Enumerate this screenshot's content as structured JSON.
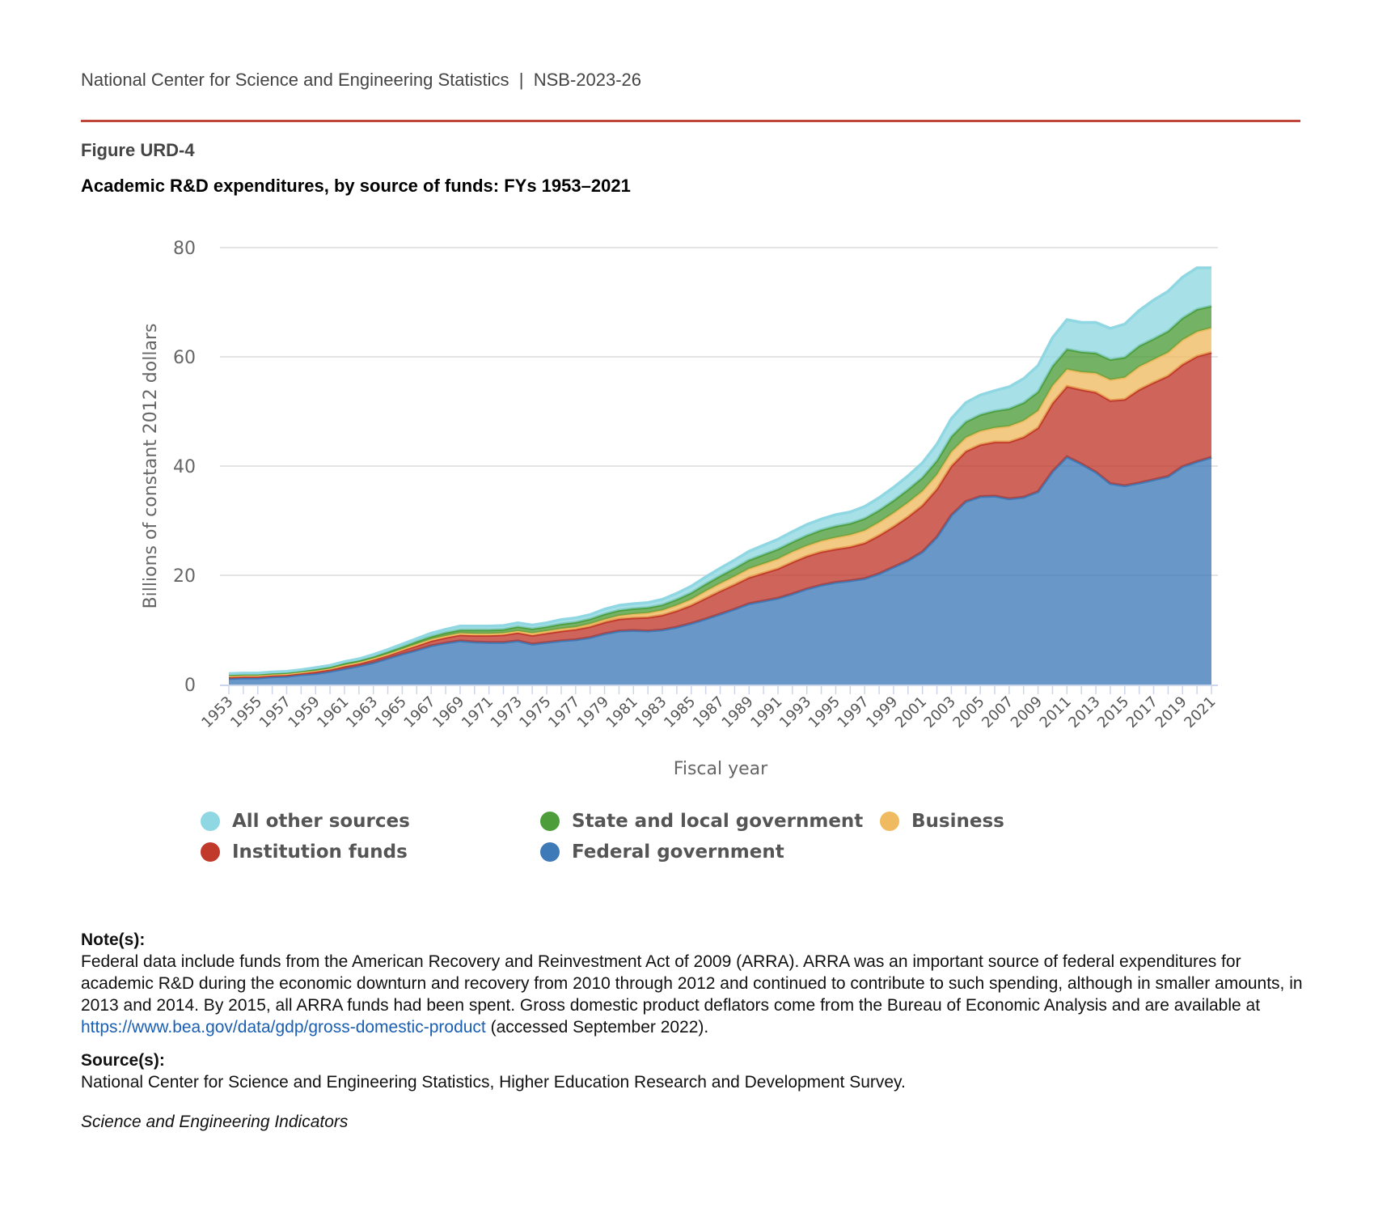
{
  "header": {
    "org": "National Center for Science and Engineering Statistics",
    "separator": "|",
    "report_id": "NSB-2023-26"
  },
  "figure_label": "Figure URD-4",
  "colors": {
    "accent_rule": "#c0463a",
    "other": "#8fd7e2",
    "state": "#4d9e3b",
    "business": "#f0bb60",
    "institution": "#c0392b",
    "federal": "#3f7ab8"
  },
  "chart_data": {
    "type": "area",
    "stacked": true,
    "title": "Academic R&D expenditures, by source of funds: FYs 1953–2021",
    "xlabel": "Fiscal year",
    "ylabel": "Billions of constant 2012 dollars",
    "ylim": [
      0,
      80
    ],
    "yticks": [
      0,
      20,
      40,
      60,
      80
    ],
    "grid": true,
    "legend_position": "bottom",
    "x": [
      1953,
      1954,
      1955,
      1956,
      1957,
      1958,
      1959,
      1960,
      1961,
      1962,
      1963,
      1964,
      1965,
      1966,
      1967,
      1968,
      1969,
      1970,
      1971,
      1972,
      1973,
      1974,
      1975,
      1976,
      1977,
      1978,
      1979,
      1980,
      1981,
      1982,
      1983,
      1984,
      1985,
      1986,
      1987,
      1988,
      1989,
      1990,
      1991,
      1992,
      1993,
      1994,
      1995,
      1996,
      1997,
      1998,
      1999,
      2000,
      2001,
      2002,
      2003,
      2004,
      2005,
      2006,
      2007,
      2008,
      2009,
      2010,
      2011,
      2012,
      2013,
      2014,
      2015,
      2016,
      2017,
      2018,
      2019,
      2020,
      2021
    ],
    "xtick_labels": [
      "1953",
      "1955",
      "1957",
      "1959",
      "1961",
      "1963",
      "1965",
      "1967",
      "1969",
      "1971",
      "1973",
      "1975",
      "1977",
      "1979",
      "1981",
      "1983",
      "1985",
      "1987",
      "1989",
      "1991",
      "1993",
      "1995",
      "1997",
      "1999",
      "2001",
      "2003",
      "2005",
      "2007",
      "2009",
      "2011",
      "2013",
      "2015",
      "2017",
      "2019",
      "2021"
    ],
    "series": [
      {
        "name": "Federal government",
        "color": "#3f7ab8",
        "values": [
          1.1,
          1.2,
          1.2,
          1.4,
          1.5,
          1.8,
          2.0,
          2.4,
          2.9,
          3.4,
          4.0,
          4.8,
          5.6,
          6.3,
          7.1,
          7.6,
          8.0,
          7.8,
          7.7,
          7.7,
          8.0,
          7.4,
          7.7,
          8.0,
          8.2,
          8.6,
          9.3,
          9.8,
          9.9,
          9.8,
          10.0,
          10.5,
          11.2,
          12.0,
          12.9,
          13.8,
          14.8,
          15.3,
          15.8,
          16.6,
          17.5,
          18.2,
          18.7,
          19.0,
          19.4,
          20.3,
          21.5,
          22.7,
          24.3,
          27.0,
          31.0,
          33.5,
          34.4,
          34.5,
          34.0,
          34.3,
          35.3,
          39.0,
          41.7,
          40.4,
          38.9,
          36.8,
          36.4,
          36.9,
          37.5,
          38.1,
          39.9,
          40.8,
          41.6
        ]
      },
      {
        "name": "Institution funds",
        "color": "#c0392b",
        "values": [
          0.3,
          0.3,
          0.3,
          0.3,
          0.3,
          0.3,
          0.4,
          0.4,
          0.5,
          0.5,
          0.6,
          0.6,
          0.7,
          0.8,
          0.9,
          1.0,
          1.1,
          1.2,
          1.3,
          1.4,
          1.5,
          1.6,
          1.7,
          1.8,
          1.9,
          2.0,
          2.1,
          2.2,
          2.3,
          2.5,
          2.7,
          3.0,
          3.3,
          3.8,
          4.2,
          4.5,
          4.8,
          5.1,
          5.4,
          5.8,
          6.0,
          6.1,
          6.1,
          6.2,
          6.5,
          7.0,
          7.4,
          8.0,
          8.5,
          8.8,
          9.0,
          9.2,
          9.5,
          9.9,
          10.4,
          11.0,
          11.7,
          12.5,
          12.9,
          13.6,
          14.6,
          15.2,
          15.8,
          17.1,
          17.8,
          18.4,
          18.7,
          19.3,
          19.2
        ]
      },
      {
        "name": "Business",
        "color": "#f0bb60",
        "values": [
          0.2,
          0.2,
          0.2,
          0.2,
          0.2,
          0.2,
          0.2,
          0.2,
          0.2,
          0.2,
          0.2,
          0.2,
          0.2,
          0.3,
          0.3,
          0.3,
          0.3,
          0.3,
          0.3,
          0.3,
          0.3,
          0.4,
          0.4,
          0.4,
          0.4,
          0.5,
          0.5,
          0.6,
          0.7,
          0.8,
          0.9,
          1.0,
          1.1,
          1.3,
          1.4,
          1.5,
          1.6,
          1.7,
          1.8,
          1.9,
          1.9,
          2.0,
          2.1,
          2.2,
          2.3,
          2.4,
          2.5,
          2.6,
          2.6,
          2.6,
          2.6,
          2.5,
          2.5,
          2.6,
          2.9,
          3.0,
          3.1,
          3.2,
          3.1,
          3.2,
          3.5,
          3.8,
          4.0,
          4.2,
          4.2,
          4.3,
          4.5,
          4.5,
          4.5
        ]
      },
      {
        "name": "State and local government",
        "color": "#4d9e3b",
        "values": [
          0.2,
          0.2,
          0.2,
          0.2,
          0.2,
          0.2,
          0.2,
          0.2,
          0.3,
          0.3,
          0.3,
          0.4,
          0.4,
          0.5,
          0.5,
          0.6,
          0.6,
          0.7,
          0.7,
          0.7,
          0.8,
          0.8,
          0.8,
          0.9,
          0.9,
          0.9,
          1.0,
          1.0,
          1.0,
          1.0,
          1.0,
          1.1,
          1.2,
          1.3,
          1.4,
          1.5,
          1.6,
          1.7,
          1.8,
          1.8,
          1.9,
          2.0,
          2.1,
          2.1,
          2.2,
          2.2,
          2.3,
          2.4,
          2.5,
          2.6,
          2.8,
          2.9,
          3.0,
          3.1,
          3.2,
          3.3,
          3.5,
          3.6,
          3.7,
          3.7,
          3.7,
          3.7,
          3.7,
          3.8,
          3.8,
          3.9,
          4.0,
          4.1,
          4.0
        ]
      },
      {
        "name": "All other sources",
        "color": "#8fd7e2",
        "values": [
          0.2,
          0.2,
          0.2,
          0.2,
          0.2,
          0.2,
          0.3,
          0.3,
          0.3,
          0.3,
          0.4,
          0.4,
          0.5,
          0.5,
          0.6,
          0.6,
          0.7,
          0.7,
          0.7,
          0.7,
          0.7,
          0.7,
          0.7,
          0.8,
          0.8,
          0.8,
          0.9,
          0.9,
          0.9,
          0.9,
          1.0,
          1.1,
          1.2,
          1.3,
          1.4,
          1.5,
          1.6,
          1.7,
          1.8,
          1.9,
          2.0,
          2.0,
          2.1,
          2.1,
          2.2,
          2.3,
          2.4,
          2.5,
          2.7,
          3.0,
          3.3,
          3.5,
          3.6,
          3.7,
          4.0,
          4.4,
          4.8,
          5.2,
          5.4,
          5.4,
          5.6,
          5.7,
          6.1,
          6.5,
          7.1,
          7.3,
          7.5,
          7.6,
          7.0
        ]
      }
    ]
  },
  "legend": [
    {
      "label": "All other sources",
      "color": "#8fd7e2"
    },
    {
      "label": "State and local government",
      "color": "#4d9e3b"
    },
    {
      "label": "Business",
      "color": "#f0bb60"
    },
    {
      "label": "Institution funds",
      "color": "#c0392b"
    },
    {
      "label": "Federal government",
      "color": "#3f7ab8"
    }
  ],
  "notes": {
    "heading": "Note(s):",
    "text_before_link": "Federal data include funds from the American Recovery and Reinvestment Act of 2009 (ARRA). ARRA was an important source of federal expenditures for academic R&D during the economic downturn and recovery from 2010 through 2012 and continued to contribute to such spending, although in smaller amounts, in 2013 and 2014. By 2015, all ARRA funds had been spent. Gross domestic product deflators come from the Bureau of Economic Analysis and are available at ",
    "link": "https://www.bea.gov/data/gdp/gross-domestic-product",
    "text_after_link": " (accessed September 2022)."
  },
  "sources": {
    "heading": "Source(s):",
    "text": "National Center for Science and Engineering Statistics, Higher Education Research and Development Survey."
  },
  "footer": "Science and Engineering Indicators"
}
